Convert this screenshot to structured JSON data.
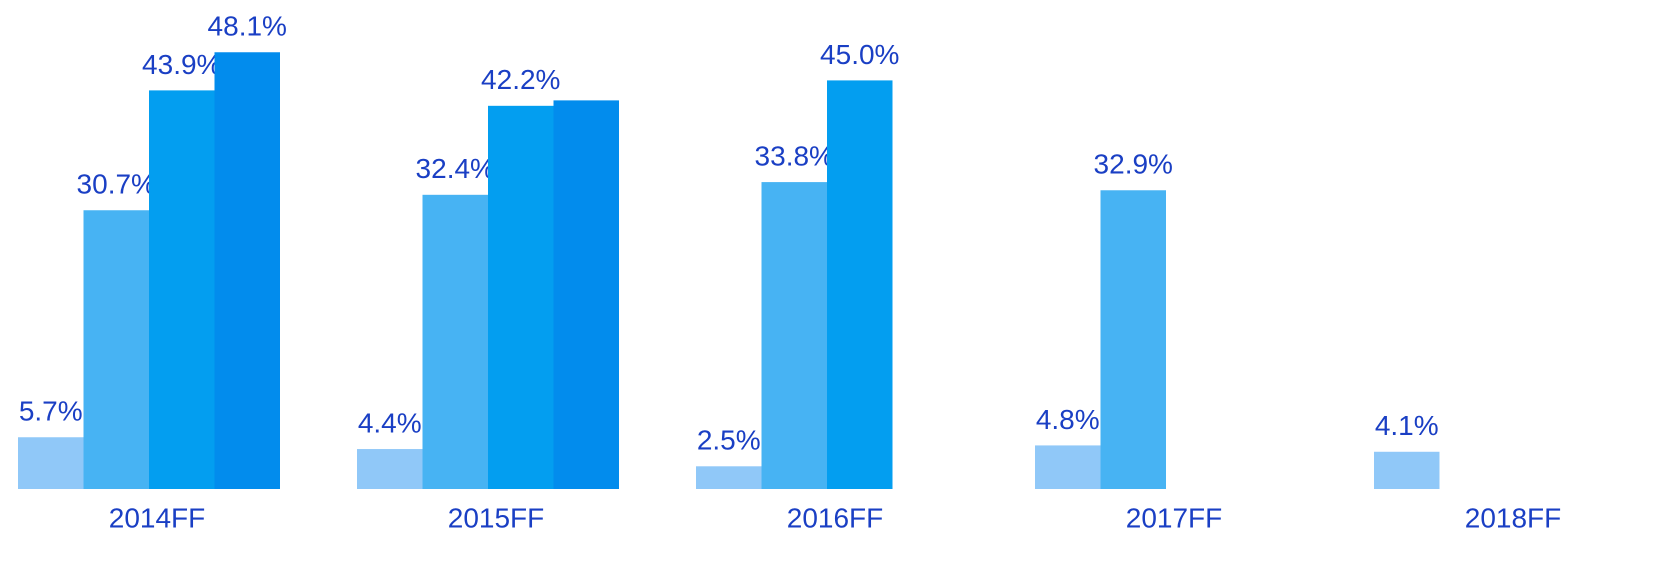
{
  "chart_data": {
    "type": "bar",
    "categories": [
      "2014FF",
      "2015FF",
      "2016FF",
      "2017FF",
      "2018FF"
    ],
    "series": [
      {
        "color": "#90c8f8",
        "values": [
          5.7,
          4.4,
          2.5,
          4.8,
          4.1
        ],
        "value_labels": [
          "5.7%",
          "4.4%",
          "2.5%",
          "4.8%",
          "4.1%"
        ]
      },
      {
        "color": "#47b3f3",
        "values": [
          30.7,
          32.4,
          33.8,
          32.9,
          null
        ],
        "value_labels": [
          "30.7%",
          "32.4%",
          "33.8%",
          "32.9%",
          null
        ]
      },
      {
        "color": "#039ef0",
        "values": [
          43.9,
          42.2,
          45.0,
          null,
          null
        ],
        "value_labels": [
          "43.9%",
          "42.2%",
          "45.0%",
          null,
          null
        ]
      },
      {
        "color": "#028ced",
        "values": [
          48.1,
          42.8,
          null,
          null,
          null
        ],
        "value_labels": [
          "48.1%",
          null,
          null,
          null,
          null
        ]
      }
    ],
    "ylim": [
      0,
      50
    ]
  }
}
